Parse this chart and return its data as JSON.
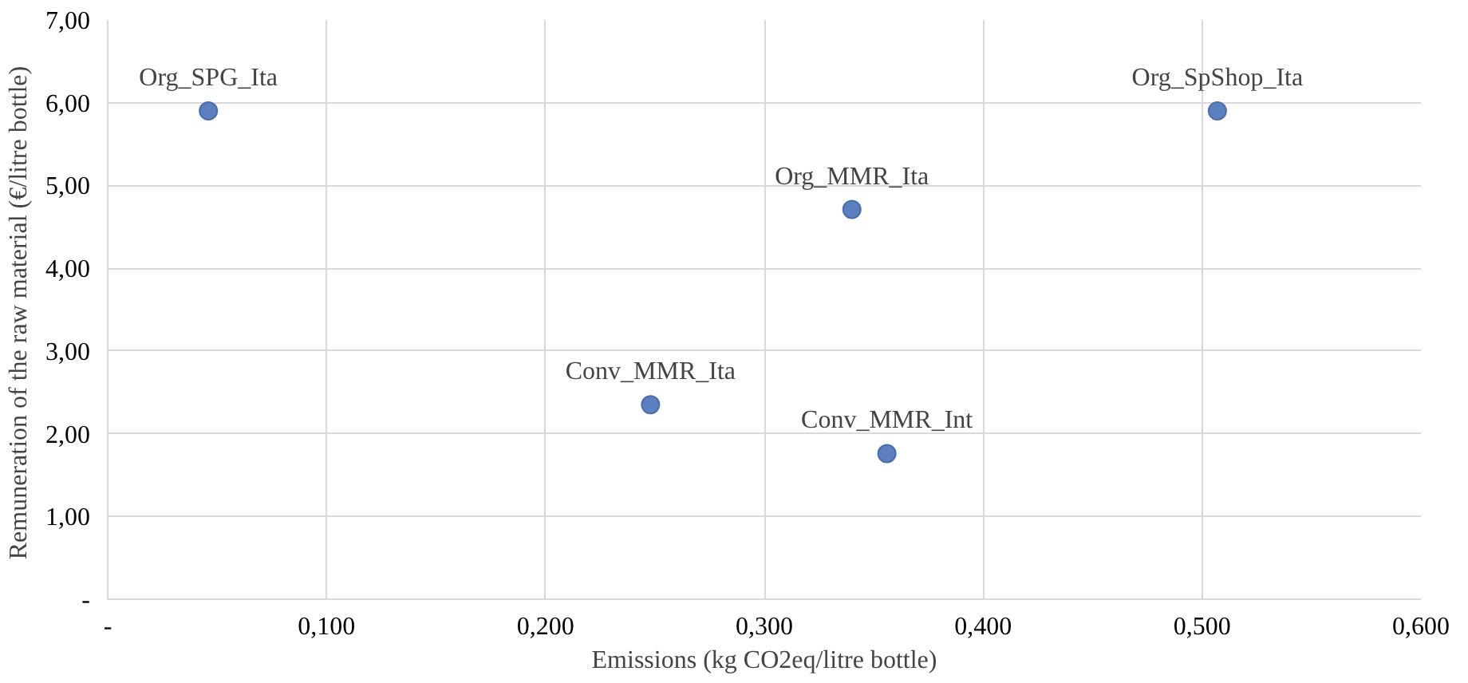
{
  "chart_data": {
    "type": "scatter",
    "xlabel": "Emissions (kg CO2eq/litre bottle)",
    "ylabel": "Remuneration of the raw material  (€/litre bottle)",
    "x": [
      0.046,
      0.507,
      0.34,
      0.248,
      0.356
    ],
    "series": [
      {
        "color": "#5b7fbf",
        "values": [
          5.9,
          5.9,
          4.71,
          2.35,
          1.76
        ]
      }
    ],
    "annotations": [
      {
        "text": "Org_SPG_Ita",
        "x": 0.046,
        "y": 5.9
      },
      {
        "text": "Org_SpShop_Ita",
        "x": 0.507,
        "y": 5.9
      },
      {
        "text": "Org_MMR_Ita",
        "x": 0.34,
        "y": 4.71
      },
      {
        "text": "Conv_MMR_Ita",
        "x": 0.248,
        "y": 2.35
      },
      {
        "text": "Conv_MMR_Int",
        "x": 0.356,
        "y": 1.76
      }
    ],
    "xlim": [
      0,
      0.6
    ],
    "xticks": [
      {
        "value": 0,
        "label": "-"
      },
      {
        "value": 0.1,
        "label": "0,100"
      },
      {
        "value": 0.2,
        "label": "0,200"
      },
      {
        "value": 0.3,
        "label": "0,300"
      },
      {
        "value": 0.4,
        "label": "0,400"
      },
      {
        "value": 0.5,
        "label": "0,500"
      },
      {
        "value": 0.6,
        "label": "0,600"
      }
    ],
    "ylim": [
      0,
      7
    ],
    "yticks": [
      {
        "value": 0,
        "label": "-"
      },
      {
        "value": 1,
        "label": "1,00"
      },
      {
        "value": 2,
        "label": "2,00"
      },
      {
        "value": 3,
        "label": "3,00"
      },
      {
        "value": 4,
        "label": "4,00"
      },
      {
        "value": 5,
        "label": "5,00"
      },
      {
        "value": 6,
        "label": "6,00"
      },
      {
        "value": 7,
        "label": "7,00"
      }
    ],
    "grid": true,
    "marker": "circle"
  }
}
